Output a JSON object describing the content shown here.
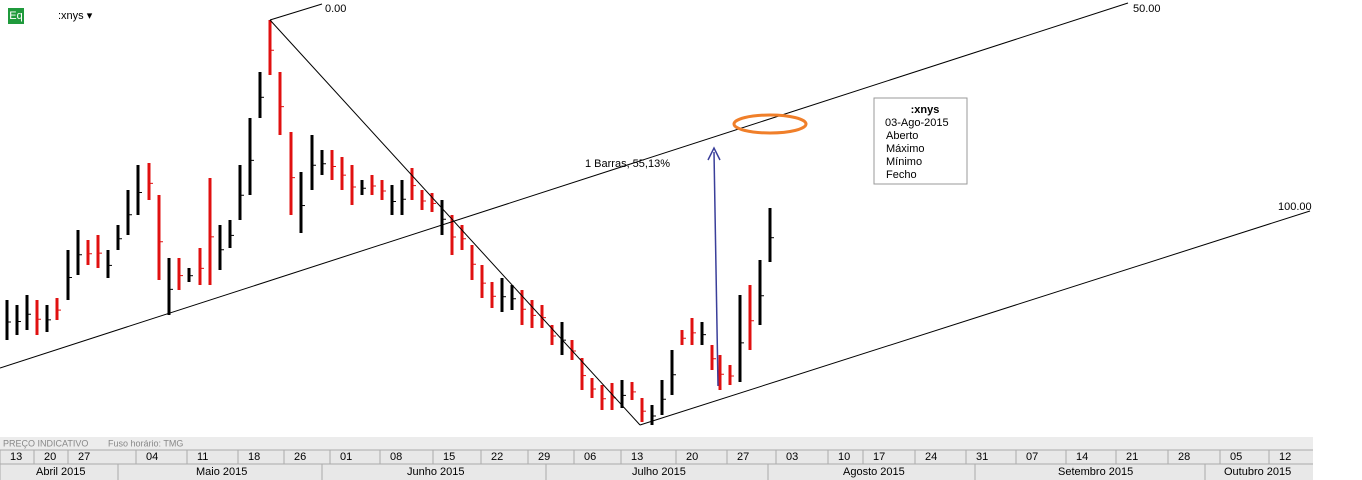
{
  "header": {
    "icon": "Eq",
    "symbol": ":xnys ▾"
  },
  "pitchfork_labels": [
    "0.00",
    "50.00",
    "100.00"
  ],
  "annotation": "1 Barras, 55,13%",
  "tooltip": {
    "title": ":xnys",
    "date": "03-Ago-2015",
    "fields": [
      "Aberto",
      "Máximo",
      "Mínimo",
      "Fecho"
    ]
  },
  "footer": {
    "price_note": "PREÇO INDICATIVO",
    "timezone": "Fuso horário: TMG"
  },
  "axis": {
    "weeks": [
      "13",
      "20",
      "27",
      "04",
      "11",
      "18",
      "26",
      "01",
      "08",
      "15",
      "22",
      "29",
      "06",
      "13",
      "20",
      "27",
      "03",
      "10",
      "17",
      "24",
      "31",
      "07",
      "14",
      "21",
      "28",
      "05",
      "12"
    ],
    "months": [
      "Abril 2015",
      "Maio 2015",
      "Junho 2015",
      "Julho 2015",
      "Agosto 2015",
      "Setembro 2015",
      "Outubro 2015"
    ]
  }
}
